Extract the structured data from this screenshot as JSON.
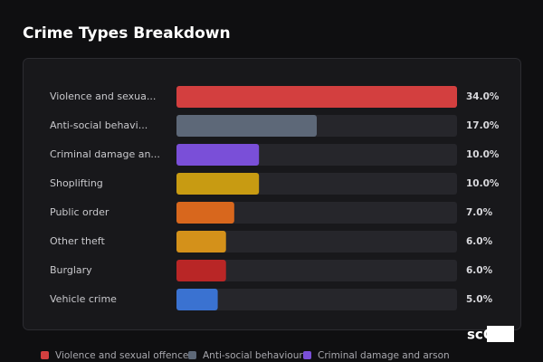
{
  "chart_data": {
    "type": "bar",
    "orientation": "horizontal",
    "title": "Crime Types Breakdown",
    "categories": [
      "Violence and sexua...",
      "Anti-social behavi...",
      "Criminal damage an...",
      "Shoplifting",
      "Public order",
      "Other theft",
      "Burglary",
      "Vehicle crime"
    ],
    "values": [
      34,
      17,
      10,
      10,
      7,
      6,
      6,
      5
    ],
    "value_labels": [
      "34.0%",
      "17.0%",
      "10.0%",
      "10.0%",
      "7.0%",
      "6.0%",
      "6.0%",
      "5.0%"
    ],
    "colors": [
      "#d33f3f",
      "#5d6878",
      "#7a4fd8",
      "#c89b12",
      "#d8671d",
      "#d4911a",
      "#b92626",
      "#3a72d1"
    ],
    "xlim": [
      0,
      34
    ],
    "legend": [
      {
        "name": "Violence and sexual offences",
        "color": "#d33f3f"
      },
      {
        "name": "Anti-social behaviour",
        "color": "#5d6878"
      },
      {
        "name": "Criminal damage and arson",
        "color": "#7a4fd8"
      }
    ]
  },
  "watermark": "scOS"
}
